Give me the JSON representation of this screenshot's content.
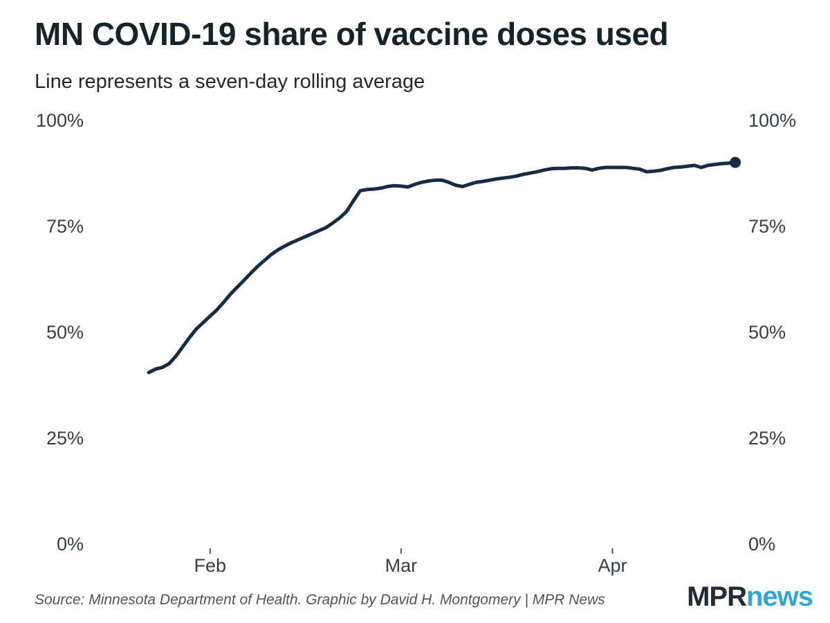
{
  "header": {
    "title": "MN COVID-19 share of vaccine doses used",
    "subtitle": "Line represents a seven-day rolling average"
  },
  "footer": {
    "source": "Source: Minnesota Department of Health. Graphic by David H. Montgomery | MPR News",
    "logo": {
      "mpr": "MPR",
      "news": "news"
    }
  },
  "colors": {
    "background": "#ffffff",
    "title": "#13242b",
    "subtitle": "#1d2930",
    "line": "#152c44",
    "axis_label": "#333e45",
    "tick_mark": "#555555",
    "source": "#4f5457",
    "logo_mpr": "#202b36",
    "logo_news": "#31a5d3"
  },
  "chart_data": {
    "type": "line",
    "title": "MN COVID-19 share of vaccine doses used",
    "subtitle": "Line represents a seven-day rolling average",
    "xlabel": "",
    "ylabel": "",
    "ylim": [
      0,
      100
    ],
    "grid": false,
    "legend": "none",
    "y_axis_sides": [
      "left",
      "right"
    ],
    "y_ticks": [
      {
        "value": 0,
        "label": "0%"
      },
      {
        "value": 25,
        "label": "25%"
      },
      {
        "value": 50,
        "label": "50%"
      },
      {
        "value": 75,
        "label": "75%"
      },
      {
        "value": 100,
        "label": "100%"
      }
    ],
    "x_ticks": [
      {
        "day_index": 9,
        "label": "Feb"
      },
      {
        "day_index": 37,
        "label": "Mar"
      },
      {
        "day_index": 68,
        "label": "Apr"
      }
    ],
    "end_point_marker": true,
    "series": [
      {
        "name": "Share of vaccine doses used, seven-day rolling average (%)",
        "start_date": "Jan 23",
        "end_date": "Apr 19",
        "points": [
          [
            "Jan 23",
            40.5
          ],
          [
            "Jan 24",
            41.3
          ],
          [
            "Jan 25",
            41.7
          ],
          [
            "Jan 26",
            42.6
          ],
          [
            "Jan 27",
            44.4
          ],
          [
            "Jan 28",
            46.6
          ],
          [
            "Jan 29",
            48.8
          ],
          [
            "Jan 30",
            50.8
          ],
          [
            "Jan 31",
            52.3
          ],
          [
            "Feb 1",
            53.8
          ],
          [
            "Feb 2",
            55.3
          ],
          [
            "Feb 3",
            57.1
          ],
          [
            "Feb 4",
            59.0
          ],
          [
            "Feb 5",
            60.7
          ],
          [
            "Feb 6",
            62.3
          ],
          [
            "Feb 7",
            64.0
          ],
          [
            "Feb 8",
            65.6
          ],
          [
            "Feb 9",
            67.0
          ],
          [
            "Feb 10",
            68.4
          ],
          [
            "Feb 11",
            69.5
          ],
          [
            "Feb 12",
            70.4
          ],
          [
            "Feb 13",
            71.2
          ],
          [
            "Feb 14",
            71.9
          ],
          [
            "Feb 15",
            72.6
          ],
          [
            "Feb 16",
            73.3
          ],
          [
            "Feb 17",
            74.0
          ],
          [
            "Feb 18",
            74.7
          ],
          [
            "Feb 19",
            75.8
          ],
          [
            "Feb 20",
            77.0
          ],
          [
            "Feb 21",
            78.5
          ],
          [
            "Feb 22",
            81.0
          ],
          [
            "Feb 23",
            83.4
          ],
          [
            "Feb 24",
            83.7
          ],
          [
            "Feb 25",
            83.8
          ],
          [
            "Feb 26",
            84.0
          ],
          [
            "Feb 27",
            84.4
          ],
          [
            "Feb 28",
            84.6
          ],
          [
            "Mar 1",
            84.5
          ],
          [
            "Mar 2",
            84.3
          ],
          [
            "Mar 3",
            84.9
          ],
          [
            "Mar 4",
            85.4
          ],
          [
            "Mar 5",
            85.7
          ],
          [
            "Mar 6",
            85.9
          ],
          [
            "Mar 7",
            85.9
          ],
          [
            "Mar 8",
            85.4
          ],
          [
            "Mar 9",
            84.7
          ],
          [
            "Mar 10",
            84.4
          ],
          [
            "Mar 11",
            84.9
          ],
          [
            "Mar 12",
            85.4
          ],
          [
            "Mar 13",
            85.6
          ],
          [
            "Mar 14",
            85.9
          ],
          [
            "Mar 15",
            86.2
          ],
          [
            "Mar 16",
            86.4
          ],
          [
            "Mar 17",
            86.6
          ],
          [
            "Mar 18",
            86.9
          ],
          [
            "Mar 19",
            87.3
          ],
          [
            "Mar 20",
            87.6
          ],
          [
            "Mar 21",
            87.9
          ],
          [
            "Mar 22",
            88.3
          ],
          [
            "Mar 23",
            88.6
          ],
          [
            "Mar 24",
            88.7
          ],
          [
            "Mar 25",
            88.7
          ],
          [
            "Mar 26",
            88.8
          ],
          [
            "Mar 27",
            88.8
          ],
          [
            "Mar 28",
            88.7
          ],
          [
            "Mar 29",
            88.3
          ],
          [
            "Mar 30",
            88.7
          ],
          [
            "Mar 31",
            88.9
          ],
          [
            "Apr 1",
            88.9
          ],
          [
            "Apr 2",
            88.9
          ],
          [
            "Apr 3",
            88.9
          ],
          [
            "Apr 4",
            88.7
          ],
          [
            "Apr 5",
            88.5
          ],
          [
            "Apr 6",
            87.9
          ],
          [
            "Apr 7",
            88.0
          ],
          [
            "Apr 8",
            88.2
          ],
          [
            "Apr 9",
            88.6
          ],
          [
            "Apr 10",
            88.9
          ],
          [
            "Apr 11",
            89.0
          ],
          [
            "Apr 12",
            89.2
          ],
          [
            "Apr 13",
            89.4
          ],
          [
            "Apr 14",
            88.9
          ],
          [
            "Apr 15",
            89.4
          ],
          [
            "Apr 16",
            89.6
          ],
          [
            "Apr 17",
            89.8
          ],
          [
            "Apr 18",
            89.9
          ],
          [
            "Apr 19",
            90.1
          ]
        ]
      }
    ]
  }
}
